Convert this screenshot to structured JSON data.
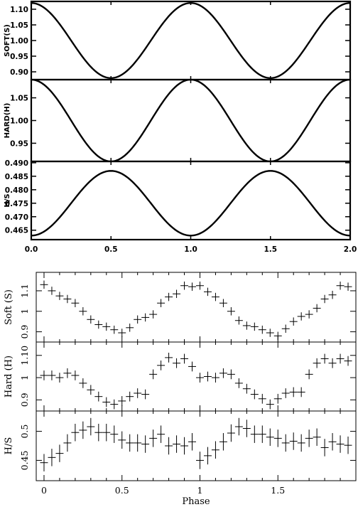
{
  "chart_data": [
    {
      "type": "line",
      "panels": [
        {
          "ylabel": "SOFT(S)",
          "ylim": [
            0.875,
            1.125
          ],
          "yticks": [
            "0.90",
            "0.95",
            "1.00",
            "1.05",
            "1.10"
          ],
          "series": [
            {
              "x_start": 0.0,
              "x_end": 2.0,
              "x_step": 0.02,
              "model": "1 + 0.12*cos(2*pi*x)"
            }
          ],
          "x": [
            0.0,
            0.1,
            0.2,
            0.25,
            0.3,
            0.4,
            0.5,
            0.6,
            0.7,
            0.75,
            0.8,
            0.9,
            1.0,
            1.1,
            1.2,
            1.25,
            1.3,
            1.4,
            1.5,
            1.6,
            1.7,
            1.75,
            1.8,
            1.9,
            2.0
          ],
          "values": [
            1.12,
            1.097,
            1.037,
            1.0,
            0.963,
            0.903,
            0.88,
            0.903,
            0.963,
            1.0,
            1.037,
            1.097,
            1.12,
            1.097,
            1.037,
            1.0,
            0.963,
            0.903,
            0.88,
            0.903,
            0.963,
            1.0,
            1.037,
            1.097,
            1.12
          ]
        },
        {
          "ylabel": "HARD(H)",
          "ylim": [
            0.91,
            1.09
          ],
          "yticks": [
            "0.95",
            "1.00",
            "1.05"
          ],
          "x": [
            0.0,
            0.1,
            0.2,
            0.25,
            0.3,
            0.4,
            0.5,
            0.6,
            0.7,
            0.75,
            0.8,
            0.9,
            1.0,
            1.1,
            1.2,
            1.25,
            1.3,
            1.4,
            1.5,
            1.6,
            1.7,
            1.75,
            1.8,
            1.9,
            2.0
          ],
          "values": [
            1.09,
            1.073,
            1.028,
            1.0,
            0.972,
            0.927,
            0.91,
            0.927,
            0.972,
            1.0,
            1.028,
            1.073,
            1.09,
            1.073,
            1.028,
            1.0,
            0.972,
            0.927,
            0.91,
            0.927,
            0.972,
            1.0,
            1.028,
            1.073,
            1.09
          ]
        },
        {
          "ylabel": "H/S",
          "ylim": [
            0.4615,
            0.4905
          ],
          "yticks": [
            "0.465",
            "0.470",
            "0.475",
            "0.480",
            "0.485",
            "0.490"
          ],
          "x": [
            0.0,
            0.1,
            0.2,
            0.25,
            0.3,
            0.4,
            0.5,
            0.6,
            0.7,
            0.75,
            0.8,
            0.9,
            1.0,
            1.1,
            1.2,
            1.25,
            1.3,
            1.4,
            1.5,
            1.6,
            1.7,
            1.75,
            1.8,
            1.9,
            2.0
          ],
          "values": [
            0.463,
            0.4651,
            0.4705,
            0.475,
            0.4795,
            0.4849,
            0.487,
            0.4849,
            0.4795,
            0.475,
            0.4705,
            0.4651,
            0.463,
            0.4651,
            0.4705,
            0.475,
            0.4795,
            0.4849,
            0.487,
            0.4849,
            0.4795,
            0.475,
            0.4705,
            0.4651,
            0.463
          ]
        }
      ],
      "xlim": [
        0.0,
        2.0
      ],
      "xticks": [
        "0.0",
        "0.5",
        "1.0",
        "1.5",
        "2.0"
      ],
      "grid": false
    },
    {
      "type": "scatter",
      "xlabel": "Phase",
      "xlim": [
        -0.05,
        2.0
      ],
      "xticks": [
        "0",
        "0.5",
        "1",
        "1.5"
      ],
      "xtick_values": [
        0,
        0.5,
        1,
        1.5
      ],
      "x_halfwidth": 0.025,
      "x": [
        0.0,
        0.05,
        0.1,
        0.15,
        0.2,
        0.25,
        0.3,
        0.35,
        0.4,
        0.45,
        0.5,
        0.55,
        0.6,
        0.65,
        0.7,
        0.75,
        0.8,
        0.85,
        0.9,
        0.95,
        1.0,
        1.05,
        1.1,
        1.15,
        1.2,
        1.25,
        1.3,
        1.35,
        1.4,
        1.45,
        1.5,
        1.55,
        1.6,
        1.65,
        1.7,
        1.75,
        1.8,
        1.85,
        1.9,
        1.95
      ],
      "panels": [
        {
          "ylabel": "Soft (S)",
          "ylim": [
            0.85,
            1.19
          ],
          "ytick_values": [
            0.9,
            1.0,
            1.1
          ],
          "yticks": [
            "0.9",
            "1",
            "1.1"
          ],
          "values": [
            1.13,
            1.1,
            1.075,
            1.06,
            1.04,
            1.0,
            0.96,
            0.935,
            0.925,
            0.91,
            0.895,
            0.92,
            0.96,
            0.97,
            0.985,
            1.04,
            1.07,
            1.085,
            1.125,
            1.12,
            1.125,
            1.095,
            1.07,
            1.04,
            1.0,
            0.955,
            0.93,
            0.925,
            0.91,
            0.895,
            0.88,
            0.915,
            0.95,
            0.975,
            0.985,
            1.015,
            1.06,
            1.08,
            1.125,
            1.12
          ],
          "errors": [
            0.02,
            0.02,
            0.02,
            0.02,
            0.02,
            0.02,
            0.02,
            0.02,
            0.02,
            0.02,
            0.02,
            0.02,
            0.02,
            0.02,
            0.02,
            0.02,
            0.02,
            0.02,
            0.02,
            0.02,
            0.02,
            0.02,
            0.02,
            0.02,
            0.02,
            0.02,
            0.02,
            0.02,
            0.02,
            0.02,
            0.02,
            0.02,
            0.02,
            0.02,
            0.02,
            0.02,
            0.02,
            0.02,
            0.02,
            0.02
          ]
        },
        {
          "ylabel": "Hard (H)",
          "ylim": [
            0.85,
            1.16
          ],
          "ytick_values": [
            0.9,
            1.0,
            1.1
          ],
          "yticks": [
            "0.9",
            "1",
            "1.10"
          ],
          "values": [
            1.01,
            1.01,
            1.0,
            1.02,
            1.01,
            0.975,
            0.945,
            0.915,
            0.89,
            0.88,
            0.895,
            0.915,
            0.93,
            0.925,
            1.015,
            1.055,
            1.09,
            1.065,
            1.085,
            1.05,
            1.0,
            1.005,
            1.0,
            1.02,
            1.015,
            0.975,
            0.95,
            0.925,
            0.905,
            0.88,
            0.905,
            0.93,
            0.935,
            0.935,
            1.015,
            1.065,
            1.085,
            1.065,
            1.085,
            1.075
          ],
          "errors": [
            0.022,
            0.022,
            0.022,
            0.022,
            0.022,
            0.022,
            0.022,
            0.022,
            0.022,
            0.022,
            0.022,
            0.022,
            0.022,
            0.022,
            0.022,
            0.022,
            0.022,
            0.022,
            0.022,
            0.022,
            0.022,
            0.022,
            0.022,
            0.022,
            0.022,
            0.022,
            0.022,
            0.022,
            0.022,
            0.022,
            0.022,
            0.022,
            0.022,
            0.022,
            0.022,
            0.022,
            0.022,
            0.022,
            0.022,
            0.022
          ]
        },
        {
          "ylabel": "H/S",
          "ylim": [
            0.415,
            0.535
          ],
          "ytick_values": [
            0.45,
            0.5
          ],
          "yticks": [
            "0.45",
            "0.5"
          ],
          "values": [
            0.446,
            0.455,
            0.462,
            0.48,
            0.498,
            0.502,
            0.508,
            0.498,
            0.498,
            0.495,
            0.485,
            0.48,
            0.48,
            0.478,
            0.488,
            0.495,
            0.475,
            0.478,
            0.475,
            0.482,
            0.45,
            0.458,
            0.468,
            0.482,
            0.497,
            0.508,
            0.505,
            0.495,
            0.495,
            0.49,
            0.488,
            0.48,
            0.483,
            0.48,
            0.488,
            0.49,
            0.472,
            0.482,
            0.478,
            0.476
          ],
          "errors": [
            0.015,
            0.015,
            0.015,
            0.015,
            0.015,
            0.015,
            0.015,
            0.015,
            0.015,
            0.015,
            0.015,
            0.015,
            0.015,
            0.015,
            0.015,
            0.015,
            0.015,
            0.015,
            0.015,
            0.015,
            0.015,
            0.015,
            0.015,
            0.015,
            0.015,
            0.015,
            0.015,
            0.015,
            0.015,
            0.015,
            0.015,
            0.015,
            0.015,
            0.015,
            0.015,
            0.015,
            0.015,
            0.015,
            0.015,
            0.015
          ]
        }
      ],
      "grid": false
    }
  ]
}
